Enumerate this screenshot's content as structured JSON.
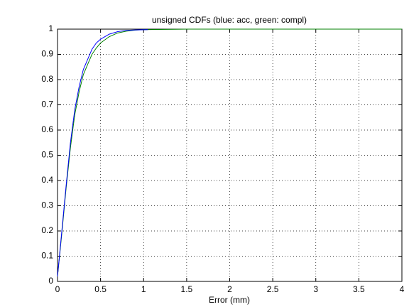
{
  "chart_data": {
    "type": "line",
    "title": "unsigned CDFs (blue: acc, green: compl)",
    "x_label": "Error (mm)",
    "xlim": [
      0,
      4
    ],
    "xticks": [
      0,
      0.5,
      1,
      1.5,
      2,
      2.5,
      3,
      3.5,
      4
    ],
    "ylim": [
      0,
      1
    ],
    "yticks": [
      0,
      0.1,
      0.2,
      0.3,
      0.4,
      0.5,
      0.6,
      0.7,
      0.8,
      0.9,
      1
    ],
    "grid": true,
    "series": [
      {
        "color": "#0000ff",
        "x": [
          0,
          0.05,
          0.1,
          0.15,
          0.2,
          0.25,
          0.3,
          0.35,
          0.4,
          0.45,
          0.5,
          0.6,
          0.7,
          0.8,
          0.9,
          1.05
        ],
        "values": [
          0.02,
          0.2,
          0.38,
          0.55,
          0.68,
          0.77,
          0.84,
          0.88,
          0.92,
          0.945,
          0.96,
          0.98,
          0.99,
          0.995,
          0.997,
          0.998
        ]
      },
      {
        "color": "#008000",
        "x": [
          0,
          0.05,
          0.1,
          0.15,
          0.2,
          0.25,
          0.3,
          0.35,
          0.4,
          0.45,
          0.5,
          0.6,
          0.7,
          0.8,
          0.9,
          1.0,
          1.5,
          2,
          3,
          4
        ],
        "values": [
          0.02,
          0.19,
          0.37,
          0.53,
          0.66,
          0.75,
          0.82,
          0.86,
          0.9,
          0.925,
          0.945,
          0.97,
          0.985,
          0.992,
          0.996,
          0.998,
          1,
          1,
          1,
          1
        ]
      }
    ]
  }
}
